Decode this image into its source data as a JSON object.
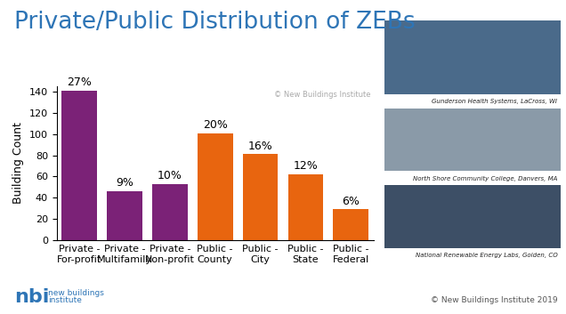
{
  "chart_data": {
    "type": "bar",
    "title": "Private/Public Distribution of ZEBs",
    "y_label": "Building Count",
    "categories": [
      "Private -\nFor-profit",
      "Private -\nMultifamily",
      "Private -\nNon-profit",
      "Public -\nCounty",
      "Public -\nCity",
      "Public -\nState",
      "Public -\nFederal"
    ],
    "values": [
      141,
      46,
      53,
      101,
      81,
      62,
      29
    ],
    "share_labels": [
      "27%",
      "9%",
      "10%",
      "20%",
      "16%",
      "12%",
      "6%"
    ],
    "colors": [
      "#7b2277",
      "#7b2277",
      "#7b2277",
      "#e8650f",
      "#e8650f",
      "#e8650f",
      "#e8650f"
    ],
    "ylim": [
      0,
      145
    ],
    "yticks": [
      0,
      20,
      40,
      60,
      80,
      100,
      120,
      140
    ],
    "grid": false,
    "annotations": {
      "watermark": "© New Buildings Institute",
      "photo_captions": [
        "Gunderson Health Systems, LaCross, WI",
        "North Shore Community College, Danvers, MA",
        "National Renewable Energy Labs, Golden, CO"
      ],
      "logo": "nbi",
      "logo_text": "new buildings\ninstitute",
      "footer": "© New Buildings Institute 2019"
    }
  }
}
